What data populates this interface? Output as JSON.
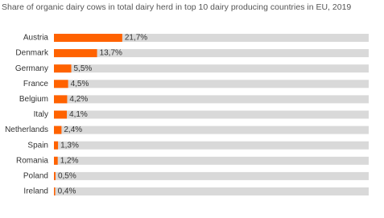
{
  "chart_data": {
    "type": "bar",
    "orientation": "horizontal",
    "title": "Share of organic dairy cows in total dairy herd in top 10 dairy producing countries in EU, 2019",
    "categories": [
      "Austria",
      "Denmark",
      "Germany",
      "France",
      "Belgium",
      "Italy",
      "Netherlands",
      "Spain",
      "Romania",
      "Poland",
      "Ireland"
    ],
    "values": [
      21.7,
      13.7,
      5.5,
      4.5,
      4.2,
      4.1,
      2.4,
      1.3,
      1.2,
      0.5,
      0.4
    ],
    "value_labels": [
      "21,7%",
      "13,7%",
      "5,5%",
      "4,5%",
      "4,2%",
      "4,1%",
      "2,4%",
      "1,3%",
      "1,2%",
      "0,5%",
      "0,4%"
    ],
    "color": "#ff6200",
    "track_color": "#d9d9d9",
    "xlim": [
      0,
      100
    ]
  }
}
